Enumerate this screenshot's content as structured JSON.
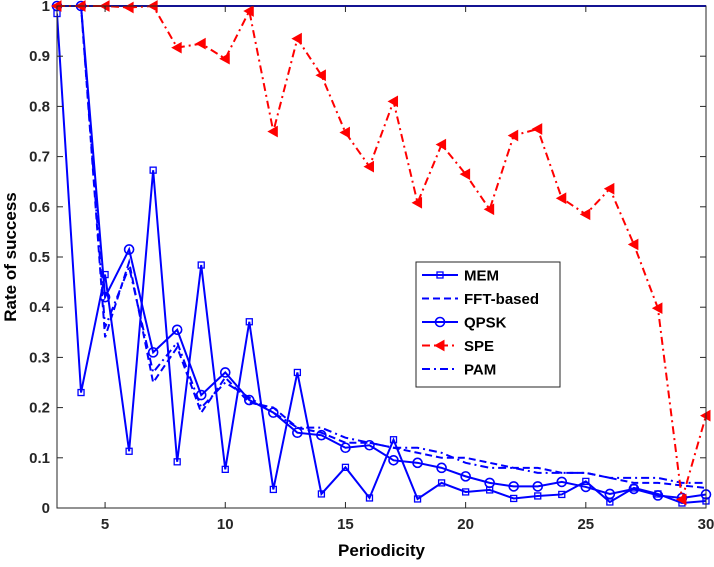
{
  "chart_data": {
    "type": "line",
    "title": "",
    "xlabel": "Periodicity",
    "ylabel": "Rate of success",
    "xlim": [
      3,
      30
    ],
    "ylim": [
      0,
      1
    ],
    "xticks": [
      5,
      10,
      15,
      20,
      25,
      30
    ],
    "yticks": [
      0,
      0.1,
      0.2,
      0.3,
      0.4,
      0.5,
      0.6,
      0.7,
      0.8,
      0.9,
      1
    ],
    "ytick_labels": [
      "0",
      "0.1",
      "0.2",
      "0.3",
      "0.4",
      "0.5",
      "0.6",
      "0.7",
      "0.8",
      "0.9",
      "1"
    ],
    "grid": false,
    "legend_position": "center-right",
    "x": [
      3,
      4,
      5,
      6,
      7,
      8,
      9,
      10,
      11,
      12,
      13,
      14,
      15,
      16,
      17,
      18,
      19,
      20,
      21,
      22,
      23,
      24,
      25,
      26,
      27,
      28,
      29,
      30
    ],
    "reference_line": 1,
    "series": [
      {
        "name": "MEM",
        "color": "#0000ff",
        "dash": "solid",
        "marker": "square",
        "values": [
          0.985,
          0.23,
          0.465,
          0.113,
          0.673,
          0.092,
          0.484,
          0.077,
          0.371,
          0.037,
          0.27,
          0.028,
          0.081,
          0.02,
          0.136,
          0.018,
          0.05,
          0.032,
          0.036,
          0.019,
          0.024,
          0.027,
          0.053,
          0.012,
          0.04,
          0.028,
          0.01,
          0.014
        ]
      },
      {
        "name": "FFT-based",
        "color": "#0000ff",
        "dash": "dashed",
        "marker": "none",
        "values": [
          1.0,
          1.0,
          0.34,
          0.49,
          0.25,
          0.32,
          0.19,
          0.26,
          0.21,
          0.2,
          0.16,
          0.15,
          0.13,
          0.13,
          0.12,
          0.11,
          0.1,
          0.1,
          0.09,
          0.08,
          0.08,
          0.07,
          0.07,
          0.06,
          0.05,
          0.05,
          0.045,
          0.04
        ]
      },
      {
        "name": "QPSK",
        "color": "#0000ff",
        "dash": "solid",
        "marker": "circle",
        "values": [
          1.0,
          1.0,
          0.42,
          0.515,
          0.31,
          0.355,
          0.225,
          0.27,
          0.215,
          0.19,
          0.15,
          0.145,
          0.12,
          0.125,
          0.095,
          0.09,
          0.08,
          0.063,
          0.05,
          0.043,
          0.043,
          0.052,
          0.042,
          0.028,
          0.038,
          0.025,
          0.02,
          0.027
        ]
      },
      {
        "name": "SPE",
        "color": "#ff0000",
        "dash": "dashdot",
        "marker": "triangle-left",
        "values": [
          1.0,
          1.0,
          1.0,
          0.997,
          1.0,
          0.917,
          0.925,
          0.895,
          0.99,
          0.75,
          0.935,
          0.862,
          0.748,
          0.68,
          0.81,
          0.608,
          0.724,
          0.665,
          0.595,
          0.742,
          0.755,
          0.617,
          0.585,
          0.636,
          0.525,
          0.398,
          0.017,
          0.184
        ]
      },
      {
        "name": "PAM",
        "color": "#0000ff",
        "dash": "dashdot",
        "marker": "none",
        "values": [
          1.0,
          1.0,
          0.36,
          0.48,
          0.27,
          0.33,
          0.2,
          0.25,
          0.22,
          0.19,
          0.16,
          0.16,
          0.14,
          0.13,
          0.12,
          0.12,
          0.11,
          0.09,
          0.08,
          0.08,
          0.07,
          0.07,
          0.07,
          0.06,
          0.06,
          0.06,
          0.05,
          0.05
        ]
      }
    ]
  }
}
